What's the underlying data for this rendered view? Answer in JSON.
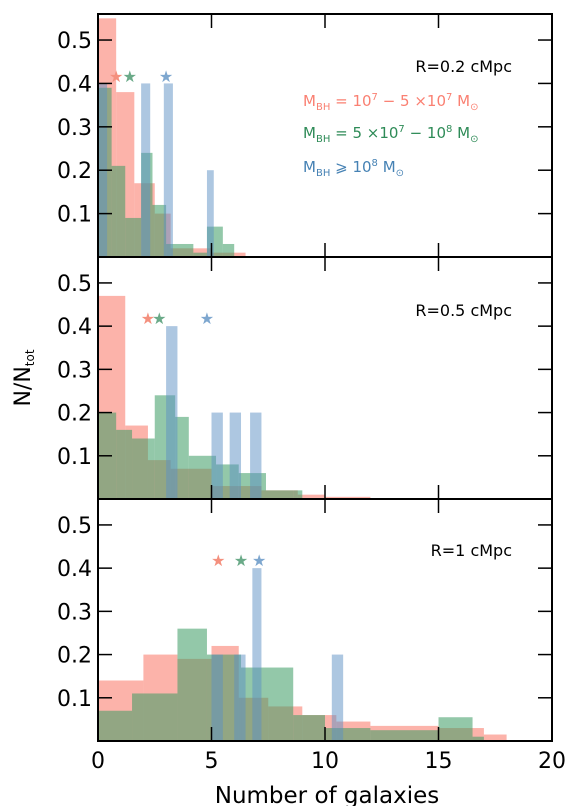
{
  "figure": {
    "ylabel": "N/N",
    "ylabel_sub": "tot",
    "xlabel": "Number of galaxies",
    "xticks": [
      "0",
      "5",
      "10",
      "15",
      "20"
    ],
    "yticks": [
      "0.1",
      "0.2",
      "0.3",
      "0.4",
      "0.5"
    ]
  },
  "legend": [
    {
      "prefix": "M",
      "sub": "BH",
      "text": " = 10",
      "sup1": "7",
      "mid": " − 5 ×10",
      "sup2": "7",
      "unit": " M",
      "usub": "⊙",
      "color": "#fa8072"
    },
    {
      "prefix": "M",
      "sub": "BH",
      "text": " = 5 ×10",
      "sup1": "7",
      "mid": " − 10",
      "sup2": "8",
      "unit": " M",
      "usub": "⊙",
      "color": "#2e8b57"
    },
    {
      "prefix": "M",
      "sub": "BH",
      "text": " ⩾ 10",
      "sup1": "8",
      "mid": "",
      "sup2": "",
      "unit": " M",
      "usub": "⊙",
      "color": "#4682b4"
    }
  ],
  "colors": {
    "salmon": "#fa8072",
    "green": "#3a9a63",
    "blue": "#5b8fc4"
  },
  "chart_data": [
    {
      "type": "bar",
      "title": "R=0.2 cMpc",
      "xlim": [
        0,
        20
      ],
      "ylim": [
        0,
        0.56
      ],
      "stars": [
        0.8,
        1.4,
        3.0
      ],
      "series": [
        {
          "name": "MBH = 10^7 - 5x10^7 Msun",
          "bins": [
            [
              0,
              0.8,
              0.55
            ],
            [
              0.8,
              1.6,
              0.38
            ],
            [
              1.6,
              2.5,
              0.17
            ],
            [
              2.5,
              3.2,
              0.1
            ],
            [
              3.2,
              5.0,
              0.02
            ],
            [
              5.0,
              6.5,
              0.01
            ]
          ]
        },
        {
          "name": "MBH = 5x10^7 - 10^8 Msun",
          "bins": [
            [
              0,
              0.6,
              0.39
            ],
            [
              0.6,
              1.2,
              0.21
            ],
            [
              1.2,
              1.9,
              0.09
            ],
            [
              1.9,
              2.4,
              0.24
            ],
            [
              2.4,
              3.0,
              0.12
            ],
            [
              3.0,
              4.2,
              0.03
            ],
            [
              4.2,
              4.8,
              0.01
            ],
            [
              4.8,
              5.5,
              0.07
            ],
            [
              5.5,
              6.0,
              0.03
            ]
          ]
        },
        {
          "name": "MBH >= 10^8 Msun",
          "bins": [
            [
              0,
              0.4,
              0.4
            ],
            [
              1.9,
              2.3,
              0.4
            ],
            [
              2.9,
              3.3,
              0.4
            ],
            [
              4.8,
              5.1,
              0.2
            ]
          ]
        }
      ]
    },
    {
      "type": "bar",
      "title": "R=0.5 cMpc",
      "xlim": [
        0,
        20
      ],
      "ylim": [
        0,
        0.56
      ],
      "stars": [
        2.2,
        2.7,
        4.8
      ],
      "series": [
        {
          "name": "MBH = 10^7 - 5x10^7 Msun",
          "bins": [
            [
              0,
              1.2,
              0.47
            ],
            [
              1.2,
              2.2,
              0.17
            ],
            [
              2.2,
              3.2,
              0.09
            ],
            [
              3.2,
              5.0,
              0.07
            ],
            [
              5.0,
              6.2,
              0.03
            ],
            [
              6.2,
              7.2,
              0.03
            ],
            [
              7.2,
              8.8,
              0.02
            ],
            [
              8.8,
              10.0,
              0.01
            ],
            [
              10.0,
              12.0,
              0.005
            ]
          ]
        },
        {
          "name": "MBH = 5x10^7 - 10^8 Msun",
          "bins": [
            [
              0,
              0.8,
              0.2
            ],
            [
              0.8,
              1.5,
              0.16
            ],
            [
              1.5,
              2.5,
              0.14
            ],
            [
              2.5,
              3.4,
              0.24
            ],
            [
              3.4,
              4.0,
              0.19
            ],
            [
              4.0,
              5.2,
              0.1
            ],
            [
              5.2,
              6.2,
              0.08
            ],
            [
              6.2,
              7.4,
              0.06
            ],
            [
              7.4,
              8.6,
              0.02
            ],
            [
              8.6,
              9.0,
              0.02
            ]
          ]
        },
        {
          "name": "MBH >= 10^8 Msun",
          "bins": [
            [
              3.0,
              3.5,
              0.4
            ],
            [
              5.0,
              5.5,
              0.2
            ],
            [
              5.8,
              6.3,
              0.2
            ],
            [
              6.7,
              7.2,
              0.2
            ]
          ]
        }
      ]
    },
    {
      "type": "bar",
      "title": "R=1 cMpc",
      "xlim": [
        0,
        20
      ],
      "ylim": [
        0,
        0.56
      ],
      "stars": [
        5.3,
        6.3,
        7.1
      ],
      "series": [
        {
          "name": "MBH = 10^7 - 5x10^7 Msun",
          "bins": [
            [
              0,
              2.0,
              0.14
            ],
            [
              2.0,
              3.5,
              0.2
            ],
            [
              3.5,
              5.0,
              0.19
            ],
            [
              5.0,
              6.2,
              0.22
            ],
            [
              6.2,
              7.5,
              0.1
            ],
            [
              7.5,
              9.0,
              0.08
            ],
            [
              9.0,
              10.5,
              0.06
            ],
            [
              10.5,
              12.0,
              0.045
            ],
            [
              12.0,
              15.0,
              0.035
            ],
            [
              15.0,
              17.0,
              0.03
            ],
            [
              17.0,
              18.0,
              0.015
            ]
          ]
        },
        {
          "name": "MBH = 5x10^7 - 10^8 Msun",
          "bins": [
            [
              0,
              1.5,
              0.07
            ],
            [
              1.5,
              3.5,
              0.11
            ],
            [
              3.5,
              4.8,
              0.26
            ],
            [
              4.8,
              6.3,
              0.2
            ],
            [
              6.3,
              8.6,
              0.17
            ],
            [
              8.6,
              10.0,
              0.06
            ],
            [
              10.0,
              12.0,
              0.03
            ],
            [
              12.0,
              15.0,
              0.025
            ],
            [
              15.0,
              16.5,
              0.055
            ],
            [
              16.5,
              17.0,
              0.01
            ]
          ]
        },
        {
          "name": "MBH >= 10^8 Msun",
          "bins": [
            [
              5.0,
              5.5,
              0.2
            ],
            [
              6.0,
              6.5,
              0.2
            ],
            [
              6.8,
              7.2,
              0.4
            ],
            [
              10.3,
              10.8,
              0.2
            ]
          ]
        }
      ]
    }
  ]
}
